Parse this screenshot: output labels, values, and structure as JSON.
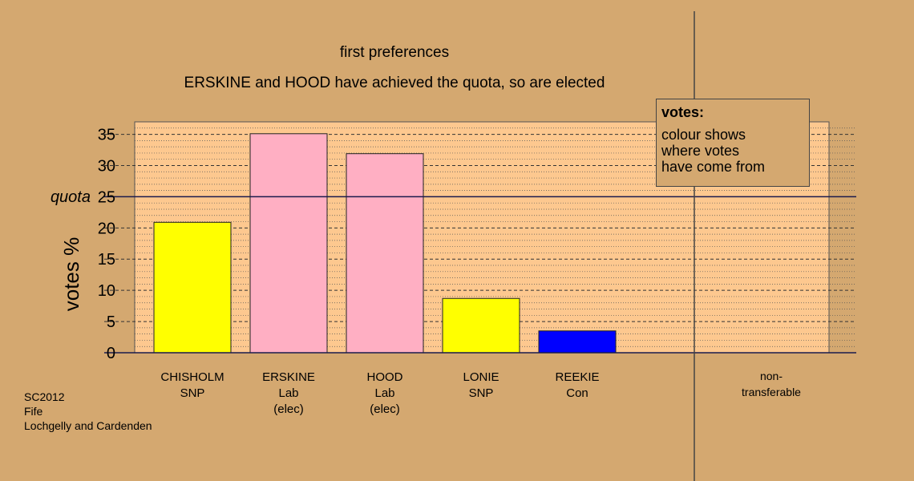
{
  "chart_data": {
    "type": "bar",
    "title": "first preferences",
    "subtitle": "ERSKINE and HOOD have achieved the quota, so are elected",
    "ylabel": "votes %",
    "ylim": [
      0,
      37
    ],
    "yticks": [
      0,
      5,
      10,
      15,
      20,
      25,
      30,
      35
    ],
    "quota": 25,
    "quota_label": "quota",
    "categories": [
      {
        "name": "CHISHOLM",
        "party": "SNP",
        "note": ""
      },
      {
        "name": "ERSKINE",
        "party": "Lab",
        "note": "(elec)"
      },
      {
        "name": "HOOD",
        "party": "Lab",
        "note": "(elec)"
      },
      {
        "name": "LONIE",
        "party": "SNP",
        "note": ""
      },
      {
        "name": "REEKIE",
        "party": "Con",
        "note": ""
      }
    ],
    "values": [
      20.9,
      35.1,
      31.9,
      8.7,
      3.5
    ],
    "colors": [
      "#ffff00",
      "#ffafc3",
      "#ffafc3",
      "#ffff00",
      "#0000ff"
    ],
    "extra_category": {
      "line1": "non-",
      "line2": "transferable",
      "value": 0
    },
    "grid": true
  },
  "legend": {
    "title": "votes:",
    "body": "colour shows\nwhere votes\nhave come from"
  },
  "footer": {
    "line1": "SC2012",
    "line2": "Fife",
    "line3": "Lochgelly and Cardenden"
  },
  "colors": {
    "background": "#d4a870",
    "plot_background": "#fdc88f",
    "axis": "#1a1a4d"
  }
}
